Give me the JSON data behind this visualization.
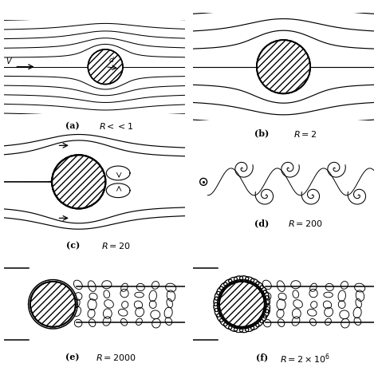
{
  "background_color": "#ffffff",
  "labels": {
    "a": [
      "(a)",
      "$R << 1$"
    ],
    "b": [
      "(b)",
      "$R = 2$"
    ],
    "c": [
      "(c)",
      "$R = 20$"
    ],
    "d": [
      "(d)",
      "$R = 200$"
    ],
    "e": [
      "(e)",
      "$R = 2000$"
    ],
    "f": [
      "(f)",
      "$R = 2\\times10^{6}$"
    ]
  }
}
